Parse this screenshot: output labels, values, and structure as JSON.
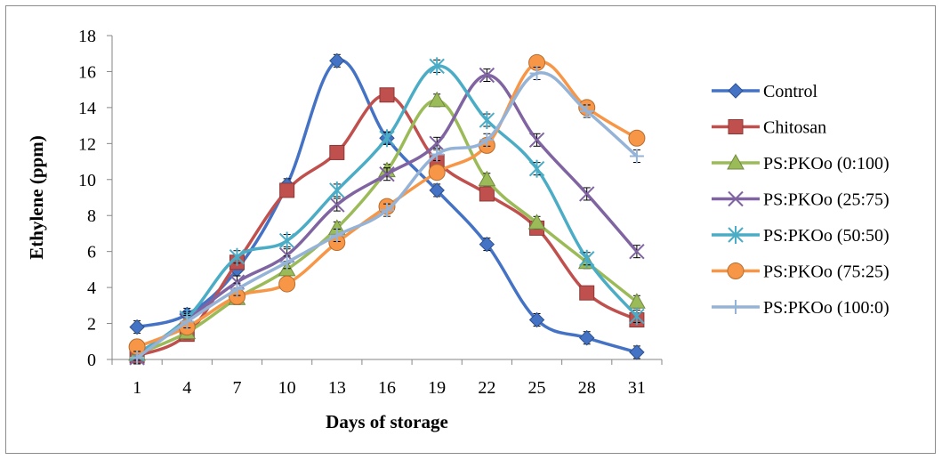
{
  "chart_data": {
    "type": "line",
    "xlabel": "Days of storage",
    "ylabel": "Ethylene (ppm)",
    "categories": [
      "1",
      "4",
      "7",
      "10",
      "13",
      "16",
      "19",
      "22",
      "25",
      "28",
      "31"
    ],
    "ylim": [
      0,
      18
    ],
    "yticks": [
      0,
      2,
      4,
      6,
      8,
      10,
      12,
      14,
      16,
      18
    ],
    "grid": false,
    "legend_position": "right",
    "smoothed": true,
    "error_bars": true,
    "series": [
      {
        "name": "Control",
        "color": "#4472C4",
        "marker": "diamond",
        "values": [
          1.8,
          2.5,
          5.0,
          9.7,
          16.6,
          12.3,
          9.4,
          6.4,
          2.2,
          1.2,
          0.4
        ]
      },
      {
        "name": "Chitosan",
        "color": "#C0504D",
        "marker": "square",
        "values": [
          0.2,
          1.4,
          5.4,
          9.4,
          11.5,
          14.7,
          11.0,
          9.2,
          7.3,
          3.7,
          2.2
        ]
      },
      {
        "name": "PS:PKOo (0:100)",
        "color": "#9BBB59",
        "marker": "triangle",
        "values": [
          0.3,
          1.5,
          3.4,
          5.0,
          7.3,
          10.5,
          14.4,
          10.0,
          7.6,
          5.4,
          3.2
        ]
      },
      {
        "name": "PS:PKOo (25:75)",
        "color": "#8064A2",
        "marker": "x",
        "values": [
          0.1,
          2.2,
          4.3,
          5.8,
          8.6,
          10.3,
          12.0,
          15.8,
          12.2,
          9.2,
          6.0
        ]
      },
      {
        "name": "PS:PKOo (50:50)",
        "color": "#4BACC6",
        "marker": "star",
        "values": [
          0.3,
          2.3,
          5.7,
          6.6,
          9.4,
          12.3,
          16.3,
          13.3,
          10.6,
          5.6,
          2.4
        ]
      },
      {
        "name": "PS:PKOo (75:25)",
        "color": "#F79646",
        "marker": "circle",
        "values": [
          0.7,
          1.8,
          3.5,
          4.2,
          6.5,
          8.5,
          10.4,
          11.9,
          16.5,
          14.0,
          12.3
        ]
      },
      {
        "name": "PS:PKOo (100:0)",
        "color": "#95B3D7",
        "marker": "plus",
        "values": [
          0.1,
          2.1,
          3.9,
          5.4,
          6.9,
          8.3,
          11.4,
          12.2,
          15.9,
          13.8,
          11.3
        ]
      }
    ]
  }
}
